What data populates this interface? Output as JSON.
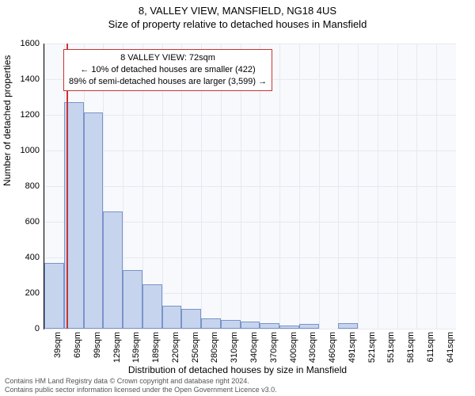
{
  "title": "8, VALLEY VIEW, MANSFIELD, NG18 4US",
  "subtitle": "Size of property relative to detached houses in Mansfield",
  "ylabel": "Number of detached properties",
  "xlabel": "Distribution of detached houses by size in Mansfield",
  "chart": {
    "type": "histogram",
    "background_color": "#f7f9fc",
    "grid_color": "#e6e9ef",
    "bar_fill": "#c7d4ee",
    "bar_stroke": "#7a93c9",
    "ref_line_color": "#cc3333",
    "ylim": [
      0,
      1600
    ],
    "yticks": [
      0,
      200,
      400,
      600,
      800,
      1000,
      1200,
      1400,
      1600
    ],
    "categories": [
      "39sqm",
      "69sqm",
      "99sqm",
      "129sqm",
      "159sqm",
      "189sqm",
      "220sqm",
      "250sqm",
      "280sqm",
      "310sqm",
      "340sqm",
      "370sqm",
      "400sqm",
      "430sqm",
      "460sqm",
      "491sqm",
      "521sqm",
      "551sqm",
      "581sqm",
      "611sqm",
      "641sqm"
    ],
    "values": [
      370,
      1270,
      1215,
      660,
      330,
      250,
      130,
      110,
      60,
      50,
      40,
      30,
      20,
      25,
      0,
      30,
      0,
      0,
      0,
      0,
      0
    ],
    "ref_index": 1,
    "bar_width_ratio": 1.0,
    "title_fontsize": 13,
    "tick_fontsize": 11,
    "label_fontsize": 12
  },
  "annotation": {
    "line1": "8 VALLEY VIEW: 72sqm",
    "line2": "← 10% of detached houses are smaller (422)",
    "line3": "89% of semi-detached houses are larger (3,599) →",
    "border_color": "#cc3333"
  },
  "footer": {
    "line1": "Contains HM Land Registry data © Crown copyright and database right 2024.",
    "line2": "Contains public sector information licensed under the Open Government Licence v3.0."
  }
}
